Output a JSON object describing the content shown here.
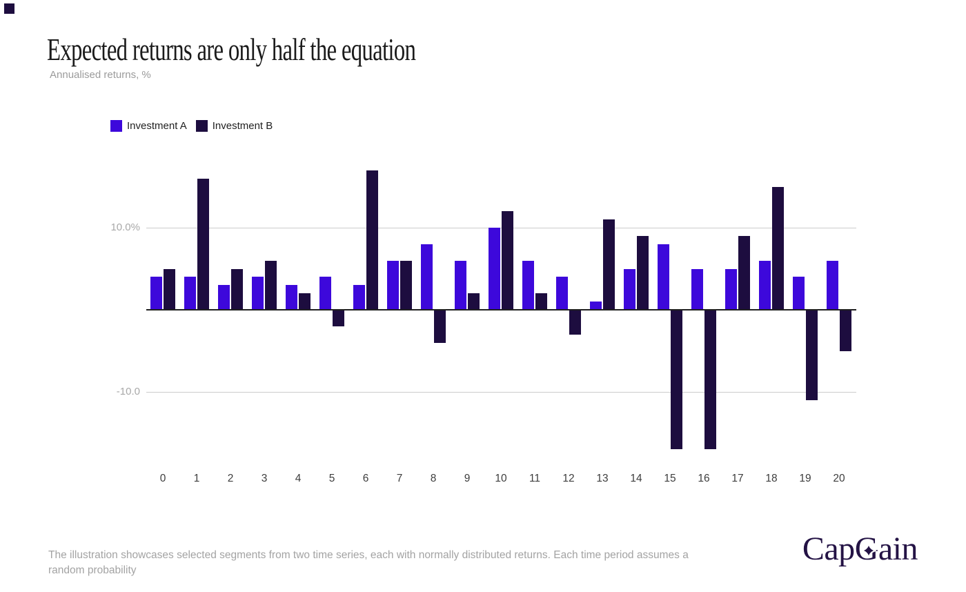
{
  "page": {
    "title": "Expected returns are only half the equation",
    "subtitle": "Annualised returns, %",
    "footnote": "The illustration showcases selected segments from two time series, each with normally distributed returns. Each time period assumes a random probability"
  },
  "colors": {
    "series_a": "#3D08DB",
    "series_b": "#1D0D3F",
    "gridline": "#cccccc",
    "axis_line": "#1f1f1f",
    "logo": "#241345"
  },
  "legend": [
    {
      "label": "Investment A",
      "color": "#3D08DB"
    },
    {
      "label": "Investment B",
      "color": "#1D0D3F"
    }
  ],
  "logo": {
    "part1": "Cap",
    "part2": "G",
    "part3": "ain",
    "star_icon": "four-point-star"
  },
  "chart_data": {
    "type": "bar",
    "title": "Expected returns are only half the equation",
    "subtitle": "Annualised returns, %",
    "ylabel": "Annualised returns, %",
    "categories": [
      "0",
      "1",
      "2",
      "3",
      "4",
      "5",
      "6",
      "7",
      "8",
      "9",
      "10",
      "11",
      "12",
      "13",
      "14",
      "15",
      "16",
      "17",
      "18",
      "19",
      "20"
    ],
    "series": [
      {
        "name": "Investment A",
        "color": "#3D08DB",
        "values": [
          4,
          4,
          3,
          4,
          3,
          4,
          3,
          6,
          8,
          6,
          10,
          6,
          4,
          1,
          5,
          8,
          5,
          5,
          6,
          4,
          6
        ]
      },
      {
        "name": "Investment B",
        "color": "#1D0D3F",
        "values": [
          5,
          16,
          5,
          6,
          2,
          -2,
          17,
          6,
          -4,
          2,
          12,
          2,
          -3,
          11,
          9,
          -17,
          -17,
          9,
          15,
          -11,
          -5
        ]
      }
    ],
    "yticks": [
      {
        "value": 10,
        "label": "10.0%"
      },
      {
        "value": -10,
        "label": "-10.0"
      }
    ],
    "ylim": [
      -18,
      18
    ],
    "grid": "horizontal",
    "legend_position": "top-left",
    "zero_line": true
  }
}
